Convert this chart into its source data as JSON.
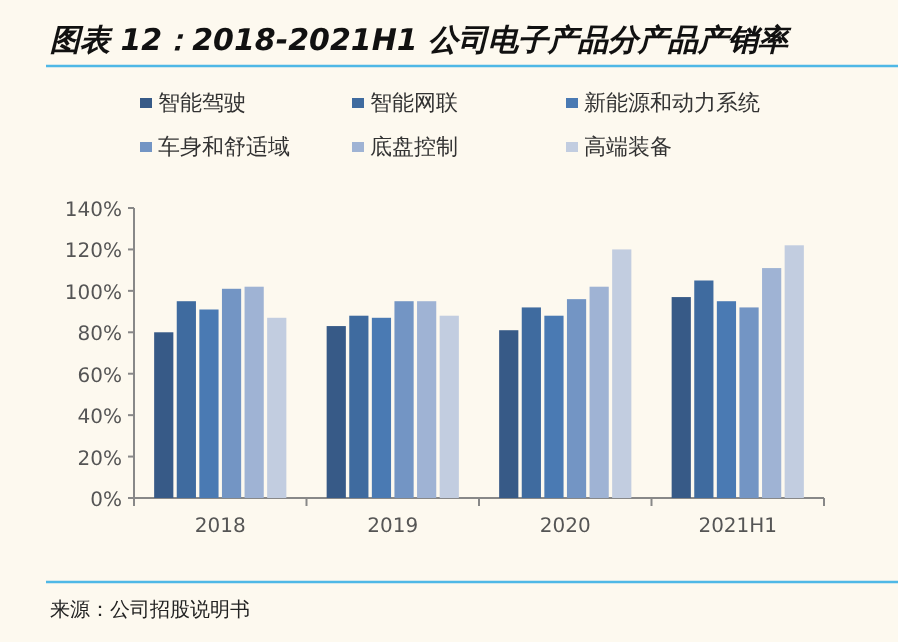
{
  "chart_data": {
    "type": "bar",
    "title": "图表 12：2018-2021H1 公司电子产品分产品产销率",
    "categories": [
      "2018",
      "2019",
      "2020",
      "2021H1"
    ],
    "series": [
      {
        "name": "智能驾驶",
        "color": "#375a87",
        "values": [
          80,
          83,
          81,
          97
        ]
      },
      {
        "name": "智能网联",
        "color": "#3f6b9f",
        "values": [
          95,
          88,
          92,
          105
        ]
      },
      {
        "name": "新能源和动力系统",
        "color": "#4a7ab3",
        "values": [
          91,
          87,
          88,
          95
        ]
      },
      {
        "name": "车身和舒适域",
        "color": "#7395c4",
        "values": [
          101,
          95,
          96,
          92
        ]
      },
      {
        "name": "底盘控制",
        "color": "#9fb3d4",
        "values": [
          102,
          95,
          102,
          111
        ]
      },
      {
        "name": "高端装备",
        "color": "#c2cde0",
        "values": [
          87,
          88,
          120,
          122
        ]
      }
    ],
    "ylim": [
      0,
      140
    ],
    "yticks": [
      {
        "value": 0,
        "label": "0%"
      },
      {
        "value": 20,
        "label": "20%"
      },
      {
        "value": 40,
        "label": "40%"
      },
      {
        "value": 60,
        "label": "60%"
      },
      {
        "value": 80,
        "label": "80%"
      },
      {
        "value": 100,
        "label": "100%"
      },
      {
        "value": 120,
        "label": "120%"
      },
      {
        "value": 140,
        "label": "140%"
      }
    ],
    "legend": "top",
    "annotations": [
      "来源：公司招股说明书"
    ]
  }
}
